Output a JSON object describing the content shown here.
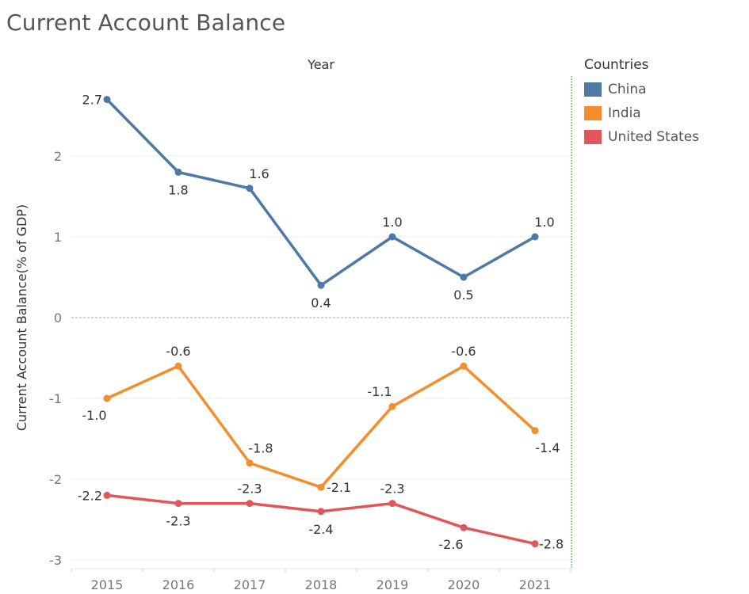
{
  "chart_data": {
    "type": "line",
    "title": "Current Account Balance",
    "xlabel": "Year",
    "ylabel": "Current Account Balance(% of GDP)",
    "categories": [
      "2015",
      "2016",
      "2017",
      "2018",
      "2019",
      "2020",
      "2021"
    ],
    "ylim": [
      -3.05,
      2.95
    ],
    "yticks": [
      2,
      1,
      0,
      -1,
      -2,
      -3
    ],
    "ytick_labels": [
      "2",
      "1",
      "0",
      "-1",
      "-2",
      "-3"
    ],
    "grid": true,
    "legend_title": "Countries",
    "legend_position": "right",
    "series": [
      {
        "name": "China",
        "color": "#4e79a7",
        "values": [
          2.7,
          1.8,
          1.6,
          0.4,
          1.0,
          0.5,
          1.0
        ],
        "labels": [
          "2.7",
          "1.8",
          "1.6",
          "0.4",
          "1.0",
          "0.5",
          "1.0"
        ]
      },
      {
        "name": "India",
        "color": "#f28e2b",
        "values": [
          -1.0,
          -0.6,
          -1.8,
          -2.1,
          -1.1,
          -0.6,
          -1.4
        ],
        "labels": [
          "-1.0",
          "-0.6",
          "-1.8",
          "-2.1",
          "-1.1",
          "-0.6",
          "-1.4"
        ]
      },
      {
        "name": "United States",
        "color": "#e15759",
        "values": [
          -2.2,
          -2.3,
          -2.3,
          -2.4,
          -2.3,
          -2.6,
          -2.8
        ],
        "labels": [
          "-2.2",
          "-2.3",
          "-2.3",
          "-2.4",
          "-2.3",
          "-2.6",
          "-2.8"
        ]
      }
    ]
  }
}
